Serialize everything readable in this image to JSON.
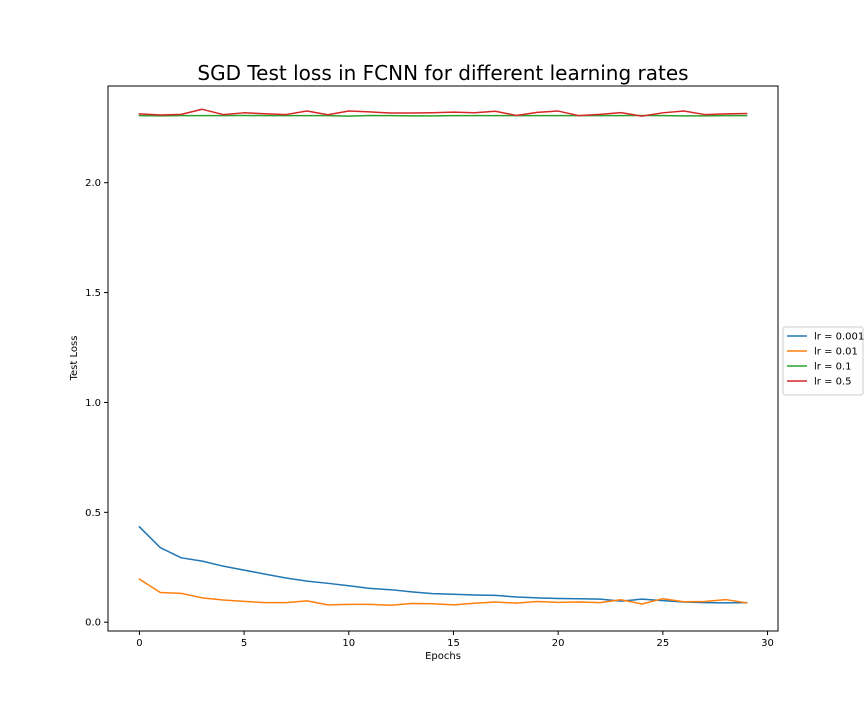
{
  "chart_data": {
    "type": "line",
    "title": "SGD Test loss in FCNN for different learning rates",
    "xlabel": "Epochs",
    "ylabel": "Test Loss",
    "xlim": [
      -1.5,
      30.5
    ],
    "ylim": [
      -0.04,
      2.44
    ],
    "xticks": [
      0,
      5,
      10,
      15,
      20,
      25,
      30
    ],
    "yticks": [
      0.0,
      0.5,
      1.0,
      1.5,
      2.0
    ],
    "xtick_labels": [
      "0",
      "5",
      "10",
      "15",
      "20",
      "25",
      "30"
    ],
    "ytick_labels": [
      "0.0",
      "0.5",
      "1.0",
      "1.5",
      "2.0"
    ],
    "grid": false,
    "legend_position": "right",
    "x": [
      0,
      1,
      2,
      3,
      4,
      5,
      6,
      7,
      8,
      9,
      10,
      11,
      12,
      13,
      14,
      15,
      16,
      17,
      18,
      19,
      20,
      21,
      22,
      23,
      24,
      25,
      26,
      27,
      28,
      29
    ],
    "series": [
      {
        "name": "lr = 0.001",
        "color": "#1f77b4",
        "values": [
          0.434,
          0.339,
          0.293,
          0.278,
          0.255,
          0.237,
          0.219,
          0.201,
          0.187,
          0.177,
          0.166,
          0.154,
          0.148,
          0.138,
          0.13,
          0.127,
          0.124,
          0.122,
          0.115,
          0.111,
          0.108,
          0.107,
          0.105,
          0.096,
          0.105,
          0.098,
          0.092,
          0.089,
          0.088,
          0.089
        ]
      },
      {
        "name": "lr = 0.01",
        "color": "#ff7f0e",
        "values": [
          0.196,
          0.135,
          0.131,
          0.111,
          0.101,
          0.095,
          0.089,
          0.089,
          0.097,
          0.079,
          0.081,
          0.081,
          0.077,
          0.085,
          0.084,
          0.079,
          0.086,
          0.092,
          0.087,
          0.094,
          0.09,
          0.092,
          0.089,
          0.102,
          0.083,
          0.107,
          0.093,
          0.094,
          0.103,
          0.088
        ]
      },
      {
        "name": "lr = 0.1",
        "color": "#2ca02c",
        "values": [
          2.305,
          2.304,
          2.305,
          2.305,
          2.305,
          2.306,
          2.305,
          2.305,
          2.305,
          2.305,
          2.303,
          2.306,
          2.305,
          2.304,
          2.304,
          2.305,
          2.305,
          2.305,
          2.305,
          2.305,
          2.305,
          2.305,
          2.305,
          2.305,
          2.306,
          2.305,
          2.304,
          2.304,
          2.305,
          2.305
        ]
      },
      {
        "name": "lr = 0.5",
        "color": "#d62728",
        "values": [
          2.313,
          2.308,
          2.311,
          2.334,
          2.31,
          2.318,
          2.314,
          2.31,
          2.326,
          2.309,
          2.326,
          2.322,
          2.317,
          2.317,
          2.318,
          2.321,
          2.318,
          2.325,
          2.306,
          2.32,
          2.326,
          2.305,
          2.311,
          2.319,
          2.303,
          2.318,
          2.326,
          2.31,
          2.313,
          2.315
        ]
      }
    ]
  }
}
